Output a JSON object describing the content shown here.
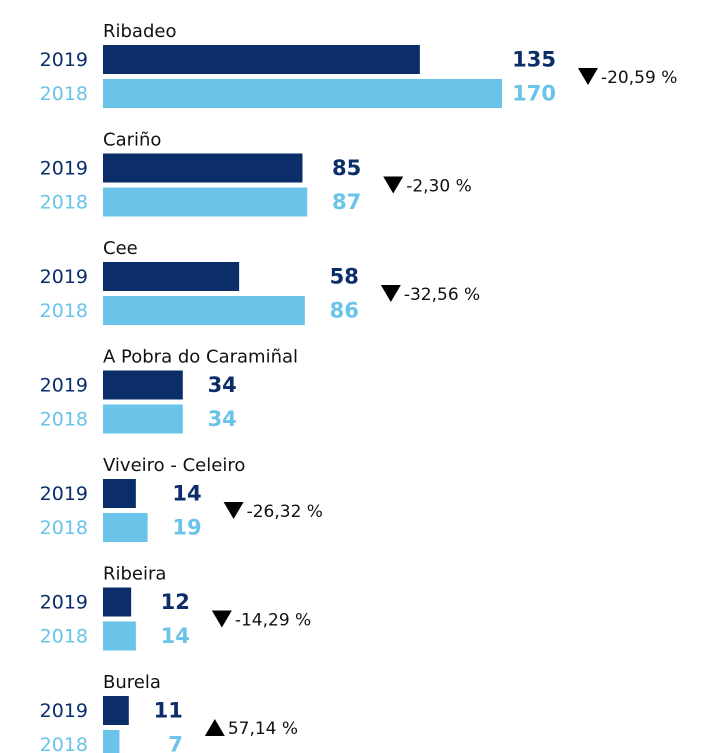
{
  "chart_data": {
    "type": "bar",
    "orientation": "horizontal",
    "categories": [
      "Ribadeo",
      "Cariño",
      "Cee",
      "A Pobra do Caramiñal",
      "Viveiro - Celeiro",
      "Ribeira",
      "Burela"
    ],
    "series": [
      {
        "name": "2019",
        "color": "#0b2e6a",
        "values": [
          135,
          85,
          58,
          34,
          14,
          12,
          11
        ]
      },
      {
        "name": "2018",
        "color": "#6ac3e8",
        "values": [
          170,
          87,
          86,
          34,
          19,
          14,
          7
        ]
      }
    ],
    "changes": [
      {
        "value": -20.59,
        "label": "-20,59 %"
      },
      {
        "value": -2.3,
        "label": "-2,30 %"
      },
      {
        "value": -32.56,
        "label": "-32,56 %"
      },
      null,
      {
        "value": -26.32,
        "label": "-26,32 %"
      },
      {
        "value": -14.29,
        "label": "-14,29 %"
      },
      {
        "value": 57.14,
        "label": "57,14 %"
      }
    ]
  }
}
